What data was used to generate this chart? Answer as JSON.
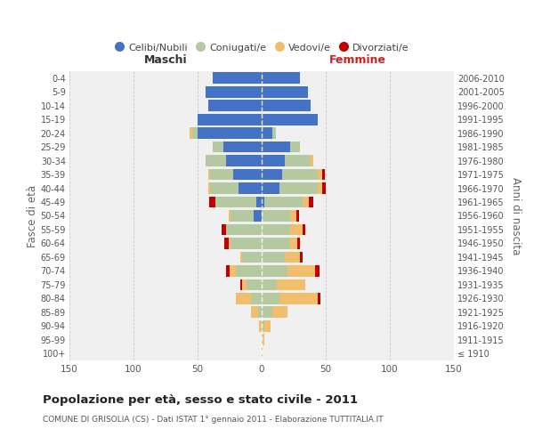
{
  "age_groups": [
    "100+",
    "95-99",
    "90-94",
    "85-89",
    "80-84",
    "75-79",
    "70-74",
    "65-69",
    "60-64",
    "55-59",
    "50-54",
    "45-49",
    "40-44",
    "35-39",
    "30-34",
    "25-29",
    "20-24",
    "15-19",
    "10-14",
    "5-9",
    "0-4"
  ],
  "birth_years": [
    "≤ 1910",
    "1911-1915",
    "1916-1920",
    "1921-1925",
    "1926-1930",
    "1931-1935",
    "1936-1940",
    "1941-1945",
    "1946-1950",
    "1951-1955",
    "1956-1960",
    "1961-1965",
    "1966-1970",
    "1971-1975",
    "1976-1980",
    "1981-1985",
    "1986-1990",
    "1991-1995",
    "1996-2000",
    "2001-2005",
    "2006-2010"
  ],
  "male_celibi": [
    0,
    0,
    0,
    0,
    0,
    0,
    0,
    0,
    0,
    0,
    6,
    4,
    18,
    22,
    28,
    30,
    50,
    50,
    42,
    44,
    38
  ],
  "male_coniugati": [
    0,
    0,
    0,
    3,
    8,
    12,
    20,
    15,
    24,
    28,
    18,
    32,
    22,
    18,
    16,
    8,
    4,
    0,
    0,
    0,
    0
  ],
  "male_vedovi": [
    0,
    0,
    2,
    5,
    12,
    3,
    5,
    2,
    2,
    0,
    2,
    0,
    2,
    2,
    0,
    0,
    2,
    0,
    0,
    0,
    0
  ],
  "male_divorziati": [
    0,
    0,
    0,
    0,
    0,
    2,
    3,
    0,
    3,
    3,
    0,
    5,
    0,
    0,
    0,
    0,
    0,
    0,
    0,
    0,
    0
  ],
  "fem_nubili": [
    0,
    0,
    0,
    0,
    0,
    0,
    0,
    0,
    0,
    0,
    0,
    2,
    14,
    16,
    18,
    22,
    8,
    44,
    38,
    36,
    30
  ],
  "fem_coniugate": [
    0,
    0,
    2,
    8,
    14,
    12,
    20,
    18,
    22,
    22,
    22,
    30,
    30,
    28,
    20,
    8,
    3,
    0,
    0,
    0,
    0
  ],
  "fem_vedove": [
    1,
    2,
    5,
    12,
    30,
    22,
    22,
    12,
    6,
    10,
    5,
    5,
    3,
    3,
    2,
    0,
    0,
    0,
    0,
    0,
    0
  ],
  "fem_divorziate": [
    0,
    0,
    0,
    0,
    2,
    0,
    3,
    2,
    2,
    2,
    2,
    3,
    3,
    2,
    0,
    0,
    0,
    0,
    0,
    0,
    0
  ],
  "col_celibi": "#4472C4",
  "col_coniugati": "#B5C9A0",
  "col_vedovi": "#F0BE6C",
  "col_divorziati": "#C00000",
  "title": "Popolazione per età, sesso e stato civile - 2011",
  "subtitle": "COMUNE DI GRISOLIA (CS) - Dati ISTAT 1° gennaio 2011 - Elaborazione TUTTITALIA.IT",
  "bg_color": "#ffffff",
  "xlim": 150
}
